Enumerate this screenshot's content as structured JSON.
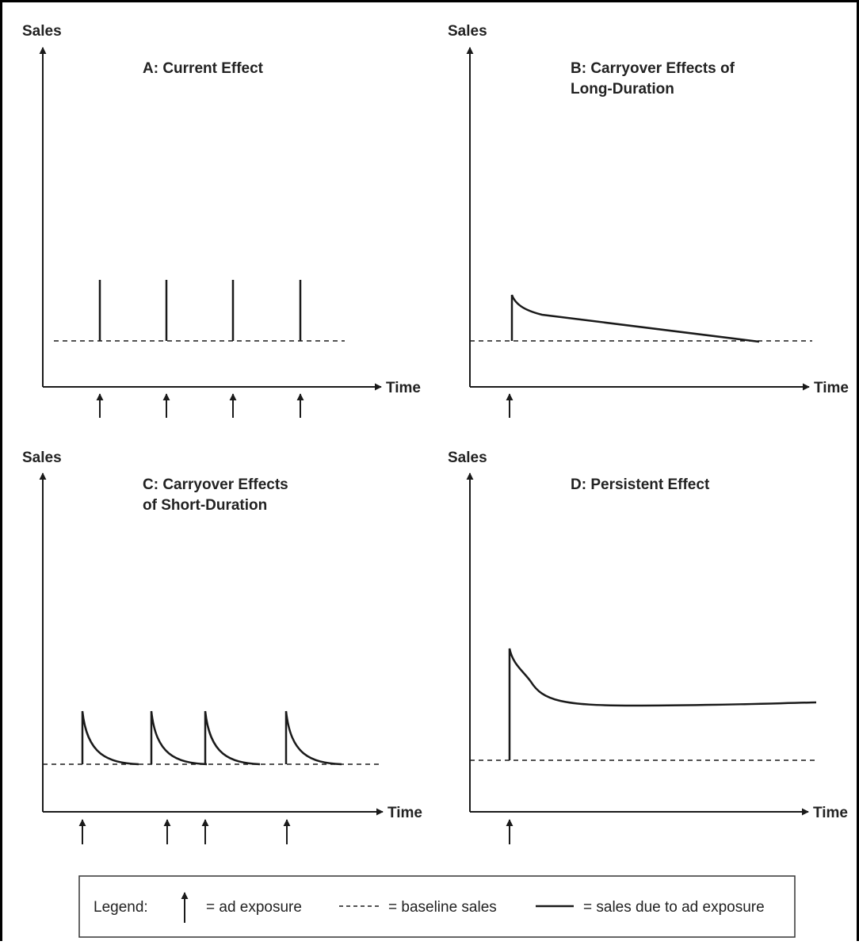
{
  "panels": {
    "a": {
      "y_axis_label": "Sales",
      "x_axis_label": "Time",
      "title_lines": [
        "A: Current Effect"
      ]
    },
    "b": {
      "y_axis_label": "Sales",
      "x_axis_label": "Time",
      "title_lines": [
        "B: Carryover Effects of",
        "Long-Duration"
      ]
    },
    "c": {
      "y_axis_label": "Sales",
      "x_axis_label": "Time",
      "title_lines": [
        "C: Carryover Effects",
        "of Short-Duration"
      ]
    },
    "d": {
      "y_axis_label": "Sales",
      "x_axis_label": "Time",
      "title_lines": [
        "D: Persistent Effect"
      ]
    }
  },
  "legend": {
    "title": "Legend:",
    "ad_exposure": "= ad exposure",
    "baseline_sales": "= baseline sales",
    "sales_due_to_ad": "= sales due to ad exposure"
  },
  "colors": {
    "ink": "#1a1a1a",
    "frame": "#000000",
    "background": "#ffffff"
  },
  "icons": {
    "ad_exposure": "up-arrow-icon",
    "baseline": "dashed-line-icon",
    "sales_effect": "solid-line-icon"
  }
}
